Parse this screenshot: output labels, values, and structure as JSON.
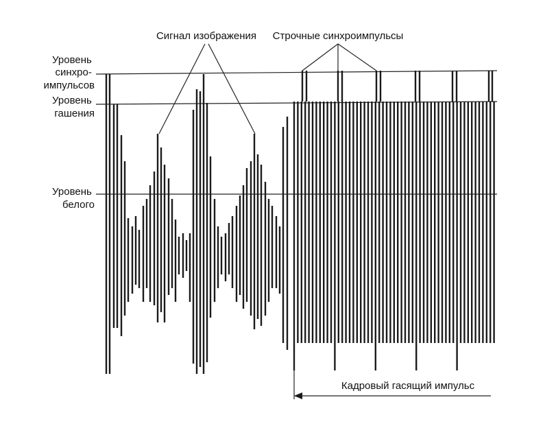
{
  "colors": {
    "ink": "#1a1a1a",
    "background": "#ffffff"
  },
  "labels": {
    "sync_level": [
      "Уровень",
      "синхро-",
      "импульсов"
    ],
    "blanking_level": [
      "Уровень",
      "гашения"
    ],
    "white_level": [
      "Уровень",
      "белого"
    ],
    "image_signal": "Сигнал изображения",
    "line_sync_pulses": "Строчные синхроимпульсы",
    "frame_blanking_pulse": "Кадровый гасящий импульс"
  }
}
